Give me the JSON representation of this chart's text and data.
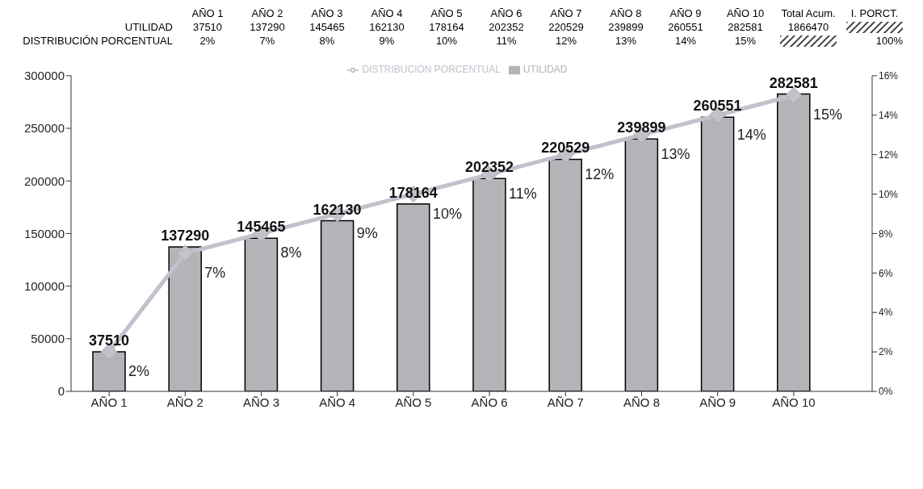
{
  "chart_data": {
    "type": "bar",
    "categories": [
      "AÑO 1",
      "AÑO 2",
      "AÑO 3",
      "AÑO 4",
      "AÑO 5",
      "AÑO 6",
      "AÑO 7",
      "AÑO 8",
      "AÑO 9",
      "AÑO 10"
    ],
    "series": [
      {
        "name": "UTILIDAD",
        "color": "#b4b4b8",
        "values": [
          37510,
          137290,
          145465,
          162130,
          178164,
          202352,
          220529,
          239899,
          260551,
          282581
        ],
        "value_labels": [
          "37510",
          "137290",
          "145465",
          "162130",
          "178164",
          "202352",
          "220529",
          "239899",
          "260551",
          "282581"
        ]
      },
      {
        "name": "DISTRIBUCIÓN PORCENTUAL",
        "type": "line",
        "axis": "y2",
        "color": "#c4c0cc",
        "marker": "diamond",
        "values": [
          2,
          7,
          8,
          9,
          10,
          11,
          12,
          13,
          14,
          15
        ],
        "value_labels": [
          "2%",
          "7%",
          "8%",
          "9%",
          "10%",
          "11%",
          "12%",
          "13%",
          "14%",
          "15%"
        ]
      }
    ],
    "ylim": [
      0,
      300000
    ],
    "yticks": [
      0,
      50000,
      100000,
      150000,
      200000,
      250000,
      300000
    ],
    "y2lim": [
      0,
      16
    ],
    "y2ticks": [
      {
        "value": 0,
        "label": "0%"
      },
      {
        "value": 2,
        "label": "2%"
      },
      {
        "value": 4,
        "label": "4%"
      },
      {
        "value": 6,
        "label": "6%"
      },
      {
        "value": 8,
        "label": "8%"
      },
      {
        "value": 10,
        "label": "10%"
      },
      {
        "value": 12,
        "label": "12%"
      },
      {
        "value": 14,
        "label": "14%"
      },
      {
        "value": 16,
        "label": "16%"
      }
    ],
    "legend": "top",
    "grid": false,
    "annotations": [
      "Total Acum.",
      "1866470",
      "I. PORCT.",
      "100%"
    ]
  }
}
